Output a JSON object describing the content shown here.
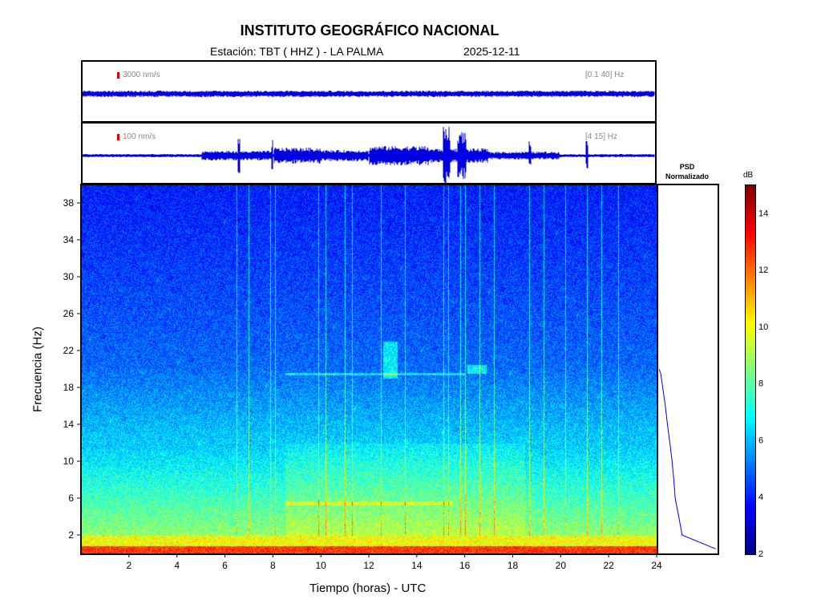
{
  "header": {
    "title": "INSTITUTO GEOGRÁFICO NACIONAL",
    "station": "Estación:  TBT ( HHZ ) - LA PALMA",
    "date": "2025-12-11"
  },
  "waveform_top": {
    "scale": "3000 nm/s",
    "band": "[0.1 40] Hz"
  },
  "waveform_bottom": {
    "scale": "100 nm/s",
    "band": "[4 15] Hz"
  },
  "psd": {
    "title_line1": "PSD",
    "title_line2": "Normalizado"
  },
  "colorbar": {
    "unit": "dB",
    "ticks": [
      "2",
      "4",
      "6",
      "8",
      "10",
      "12",
      "14"
    ],
    "range": [
      2,
      15
    ]
  },
  "axes": {
    "xlabel": "Tiempo (horas) - UTC",
    "ylabel": "Frecuencia  (Hz)"
  },
  "colors": {
    "waveform": "#0000e0",
    "scale_marker": "#e00000"
  },
  "chart_data": {
    "type": "heatmap",
    "title": "INSTITUTO GEOGRÁFICO NACIONAL",
    "xlabel": "Tiempo (horas) - UTC",
    "ylabel": "Frecuencia  (Hz)",
    "xlim": [
      0,
      24
    ],
    "ylim": [
      0,
      40
    ],
    "x_ticks": [
      2,
      4,
      6,
      8,
      10,
      12,
      14,
      16,
      18,
      20,
      22,
      24
    ],
    "y_ticks": [
      2,
      6,
      10,
      14,
      18,
      22,
      26,
      30,
      34,
      38
    ],
    "colorscale": "jet",
    "color_range_db": [
      2,
      15
    ],
    "transient_events_hours": [
      6.5,
      7.0,
      7.9,
      8.1,
      9.9,
      10.2,
      11.0,
      11.3,
      12.5,
      13.5,
      15.1,
      15.3,
      15.8,
      16.0,
      16.6,
      17.2,
      18.7,
      19.3,
      20.2,
      21.1,
      21.7,
      22.4
    ],
    "psd_profile": [
      [
        0.5,
        1.0
      ],
      [
        2,
        0.4
      ],
      [
        4,
        0.34
      ],
      [
        6,
        0.28
      ],
      [
        8,
        0.25
      ],
      [
        10,
        0.22
      ],
      [
        12,
        0.18
      ],
      [
        14,
        0.14
      ],
      [
        16,
        0.1
      ],
      [
        18,
        0.06
      ],
      [
        19.5,
        0.02
      ],
      [
        20,
        0.0
      ]
    ]
  }
}
